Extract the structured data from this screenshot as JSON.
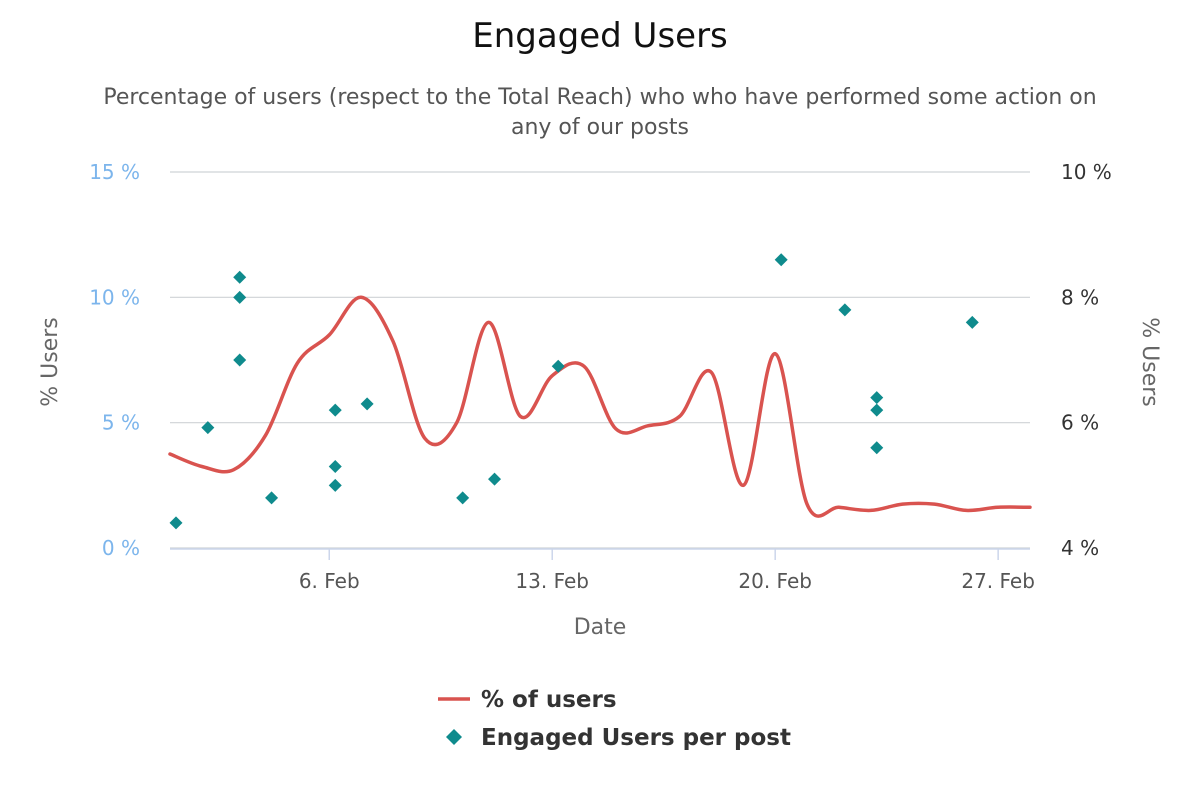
{
  "chart_data": {
    "type": "line",
    "title": "Engaged Users",
    "subtitle_lines": [
      "Percentage of users (respect to the Total Reach) who who have performed some action on",
      "any of our posts"
    ],
    "xlabel": "Date",
    "x_range": [
      "2019-02-01",
      "2019-02-28"
    ],
    "x_ticks": [
      {
        "date": "2019-02-06",
        "label": "6. Feb"
      },
      {
        "date": "2019-02-13",
        "label": "13. Feb"
      },
      {
        "date": "2019-02-20",
        "label": "20. Feb"
      },
      {
        "date": "2019-02-27",
        "label": "27. Feb"
      }
    ],
    "y_left": {
      "title": "% Users",
      "range": [
        0,
        15
      ],
      "ticks": [
        {
          "value": 0,
          "label": "0 %"
        },
        {
          "value": 5,
          "label": "5 %"
        },
        {
          "value": 10,
          "label": "10 %"
        },
        {
          "value": 15,
          "label": "15 %"
        }
      ],
      "color": "#7cb5ec"
    },
    "y_right": {
      "title": "% Users",
      "range": [
        4,
        10
      ],
      "ticks": [
        {
          "value": 4,
          "label": "4 %"
        },
        {
          "value": 6,
          "label": "6 %"
        },
        {
          "value": 8,
          "label": "8 %"
        },
        {
          "value": 10,
          "label": "10 %"
        }
      ],
      "color": "#333333"
    },
    "grid": true,
    "legend_position": "bottom-center",
    "series": [
      {
        "name": "% of users",
        "kind": "spline",
        "axis": "right",
        "color": "#d9534f",
        "points": [
          {
            "x": "2019-02-01",
            "y": 5.5
          },
          {
            "x": "2019-02-02",
            "y": 5.3
          },
          {
            "x": "2019-02-03",
            "y": 5.25
          },
          {
            "x": "2019-02-04",
            "y": 5.8
          },
          {
            "x": "2019-02-05",
            "y": 6.95
          },
          {
            "x": "2019-02-06",
            "y": 7.4
          },
          {
            "x": "2019-02-07",
            "y": 8.0
          },
          {
            "x": "2019-02-08",
            "y": 7.3
          },
          {
            "x": "2019-02-09",
            "y": 5.75
          },
          {
            "x": "2019-02-10",
            "y": 6.0
          },
          {
            "x": "2019-02-11",
            "y": 7.6
          },
          {
            "x": "2019-02-12",
            "y": 6.1
          },
          {
            "x": "2019-02-13",
            "y": 6.75
          },
          {
            "x": "2019-02-14",
            "y": 6.9
          },
          {
            "x": "2019-02-15",
            "y": 5.9
          },
          {
            "x": "2019-02-16",
            "y": 5.95
          },
          {
            "x": "2019-02-17",
            "y": 6.1
          },
          {
            "x": "2019-02-18",
            "y": 6.8
          },
          {
            "x": "2019-02-19",
            "y": 5.0
          },
          {
            "x": "2019-02-20",
            "y": 7.1
          },
          {
            "x": "2019-02-21",
            "y": 4.7
          },
          {
            "x": "2019-02-22",
            "y": 4.65
          },
          {
            "x": "2019-02-23",
            "y": 4.6
          },
          {
            "x": "2019-02-24",
            "y": 4.7
          },
          {
            "x": "2019-02-25",
            "y": 4.7
          },
          {
            "x": "2019-02-26",
            "y": 4.6
          },
          {
            "x": "2019-02-27",
            "y": 4.65
          },
          {
            "x": "2019-02-28",
            "y": 4.65
          }
        ]
      },
      {
        "name": "Engaged Users per post",
        "kind": "scatter",
        "marker": "diamond",
        "axis": "left",
        "color": "#0f8b8d",
        "points": [
          {
            "x": "2019-02-01",
            "y": 1.0
          },
          {
            "x": "2019-02-02",
            "y": 4.8
          },
          {
            "x": "2019-02-03",
            "y": 10.8
          },
          {
            "x": "2019-02-03",
            "y": 10.0
          },
          {
            "x": "2019-02-03",
            "y": 7.5
          },
          {
            "x": "2019-02-04",
            "y": 2.0
          },
          {
            "x": "2019-02-06",
            "y": 5.5
          },
          {
            "x": "2019-02-06",
            "y": 3.25
          },
          {
            "x": "2019-02-06",
            "y": 2.5
          },
          {
            "x": "2019-02-07",
            "y": 5.75
          },
          {
            "x": "2019-02-10",
            "y": 2.0
          },
          {
            "x": "2019-02-11",
            "y": 2.75
          },
          {
            "x": "2019-02-13",
            "y": 7.25
          },
          {
            "x": "2019-02-20",
            "y": 11.5
          },
          {
            "x": "2019-02-22",
            "y": 9.5
          },
          {
            "x": "2019-02-23",
            "y": 6.0
          },
          {
            "x": "2019-02-23",
            "y": 5.5
          },
          {
            "x": "2019-02-23",
            "y": 4.0
          },
          {
            "x": "2019-02-26",
            "y": 9.0
          }
        ]
      }
    ]
  }
}
